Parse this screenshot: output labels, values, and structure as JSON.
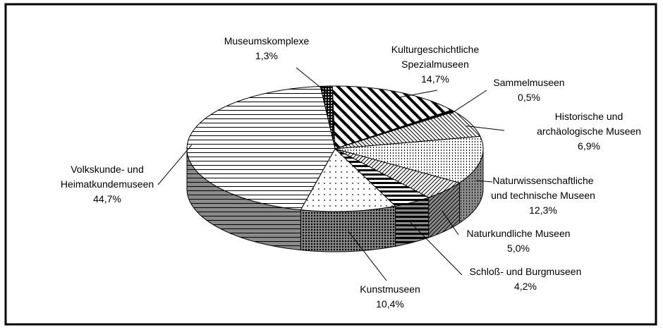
{
  "chart_data": {
    "type": "pie3d",
    "categories": [
      "Museumskomplexe",
      "Kulturgeschichtliche\nSpezialmuseen",
      "Sammelmuseen",
      "Historische und\narchäologische Museen",
      "Naturwissenschaftliche\nund technische Museen",
      "Naturkundliche Museen",
      "Schloß- und Burgmuseen",
      "Kunstmuseen",
      "Volkskunde- und\nHeimatkundemuseen"
    ],
    "values": [
      1.3,
      14.7,
      0.5,
      6.9,
      12.3,
      5.0,
      4.2,
      10.4,
      44.7
    ],
    "value_labels": [
      "1,3%",
      "14,7%",
      "0,5%",
      "6,9%",
      "12,3%",
      "5,0%",
      "4,2%",
      "10,4%",
      "44,7%"
    ]
  }
}
